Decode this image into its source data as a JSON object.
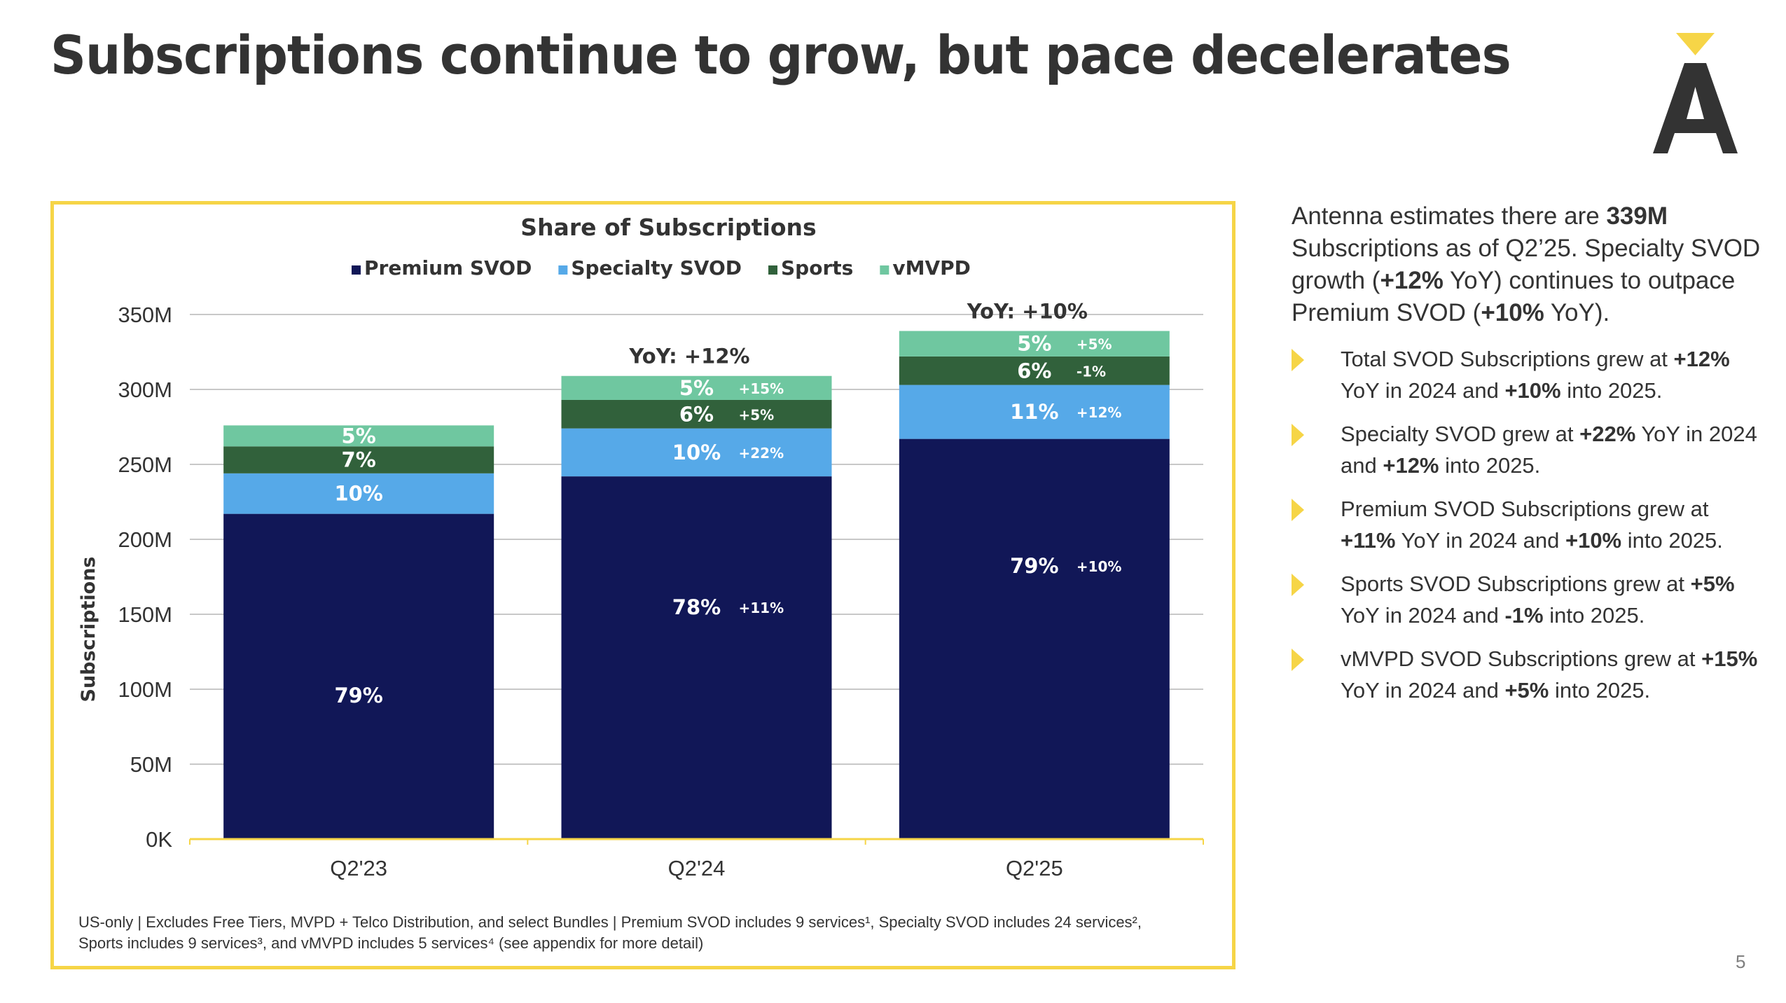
{
  "slide": {
    "title": "Subscriptions continue to grow, but pace decelerates",
    "logo_icon": "antenna-logo-icon",
    "page_number": "5",
    "accent_color": "#F6D547",
    "text_color": "#333333"
  },
  "side_panel": {
    "intro": [
      {
        "t": "Antenna estimates there are ",
        "b": false
      },
      {
        "t": "339M",
        "b": true
      },
      {
        "t": " Subscriptions as of Q2’25. Specialty SVOD growth (",
        "b": false
      },
      {
        "t": "+12%",
        "b": true
      },
      {
        "t": " YoY) continues to outpace Premium SVOD (",
        "b": false
      },
      {
        "t": "+10%",
        "b": true
      },
      {
        "t": " YoY).",
        "b": false
      }
    ],
    "bullets": [
      [
        {
          "t": "Total SVOD Subscriptions grew at ",
          "b": false
        },
        {
          "t": "+12%",
          "b": true
        },
        {
          "t": " YoY in 2024 and ",
          "b": false
        },
        {
          "t": "+10%",
          "b": true
        },
        {
          "t": " into 2025.",
          "b": false
        }
      ],
      [
        {
          "t": "Specialty SVOD grew at ",
          "b": false
        },
        {
          "t": "+22%",
          "b": true
        },
        {
          "t": " YoY in 2024 and ",
          "b": false
        },
        {
          "t": "+12%",
          "b": true
        },
        {
          "t": " into 2025.",
          "b": false
        }
      ],
      [
        {
          "t": "Premium SVOD Subscriptions grew at ",
          "b": false
        },
        {
          "t": "+11%",
          "b": true
        },
        {
          "t": " YoY in 2024 and ",
          "b": false
        },
        {
          "t": "+10%",
          "b": true
        },
        {
          "t": " into 2025.",
          "b": false
        }
      ],
      [
        {
          "t": "Sports SVOD Subscriptions grew at ",
          "b": false
        },
        {
          "t": "+5%",
          "b": true
        },
        {
          "t": " YoY in 2024 and ",
          "b": false
        },
        {
          "t": "-1%",
          "b": true
        },
        {
          "t": " into 2025.",
          "b": false
        }
      ],
      [
        {
          "t": "vMVPD SVOD Subscriptions grew at ",
          "b": false
        },
        {
          "t": "+15%",
          "b": true
        },
        {
          "t": " YoY in 2024 and ",
          "b": false
        },
        {
          "t": "+5%",
          "b": true
        },
        {
          "t": " into 2025.",
          "b": false
        }
      ]
    ]
  },
  "footnote": {
    "line1": "US-only | Excludes Free Tiers, MVPD + Telco Distribution, and select Bundles | Premium SVOD includes 9 services¹, Specialty SVOD includes 24 services²,",
    "line2": "Sports includes 9 services³, and vMVPD includes 5 services⁴ (see appendix for more detail)"
  },
  "chart_data": {
    "type": "bar",
    "stacked": true,
    "title": "Share of Subscriptions",
    "xlabel": "",
    "ylabel": "Subscriptions",
    "ylim": [
      0,
      350
    ],
    "y_unit": "M",
    "yticks": [
      0,
      50,
      100,
      150,
      200,
      250,
      300,
      350
    ],
    "ytick_labels": [
      "0K",
      "50M",
      "100M",
      "150M",
      "200M",
      "250M",
      "300M",
      "350M"
    ],
    "grid": true,
    "legend_position": "top-center",
    "categories": [
      "Q2'23",
      "Q2'24",
      "Q2'25"
    ],
    "series": [
      {
        "name": "Premium SVOD",
        "color": "#111757",
        "values": [
          217,
          242,
          267
        ],
        "share_labels": [
          "79%",
          "78%",
          "79%"
        ],
        "yoy_labels": [
          "",
          "+11%",
          "+10%"
        ]
      },
      {
        "name": "Specialty SVOD",
        "color": "#56A9E8",
        "values": [
          27,
          32,
          36
        ],
        "share_labels": [
          "10%",
          "10%",
          "11%"
        ],
        "yoy_labels": [
          "",
          "+22%",
          "+12%"
        ]
      },
      {
        "name": "Sports",
        "color": "#31613B",
        "values": [
          18,
          19,
          19
        ],
        "share_labels": [
          "7%",
          "6%",
          "6%"
        ],
        "yoy_labels": [
          "",
          "+5%",
          "-1%"
        ]
      },
      {
        "name": "vMVPD",
        "color": "#6FC7A0",
        "values": [
          14,
          16,
          17
        ],
        "share_labels": [
          "5%",
          "5%",
          "5%"
        ],
        "yoy_labels": [
          "",
          "+15%",
          "+5%"
        ]
      }
    ],
    "totals": [
      276,
      309,
      339
    ],
    "total_yoy_labels": [
      "",
      "YoY: +12%",
      "YoY: +10%"
    ]
  }
}
